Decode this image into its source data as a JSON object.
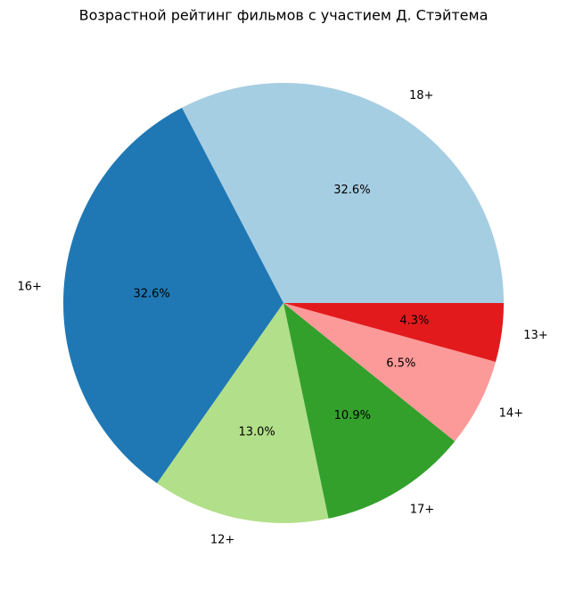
{
  "chart_data": {
    "type": "pie",
    "title": "Возрастной рейтинг фильмов с участием Д. Стэйтема",
    "categories": [
      "18+",
      "16+",
      "12+",
      "17+",
      "14+",
      "13+"
    ],
    "values": [
      32.6,
      32.6,
      13.0,
      10.9,
      6.5,
      4.3
    ],
    "value_labels": [
      "32.6%",
      "32.6%",
      "13.0%",
      "10.9%",
      "6.5%",
      "4.3%"
    ],
    "colors": [
      "#a6cee3",
      "#1f78b4",
      "#b2df8a",
      "#33a02c",
      "#fb9a99",
      "#e31a1c"
    ]
  }
}
